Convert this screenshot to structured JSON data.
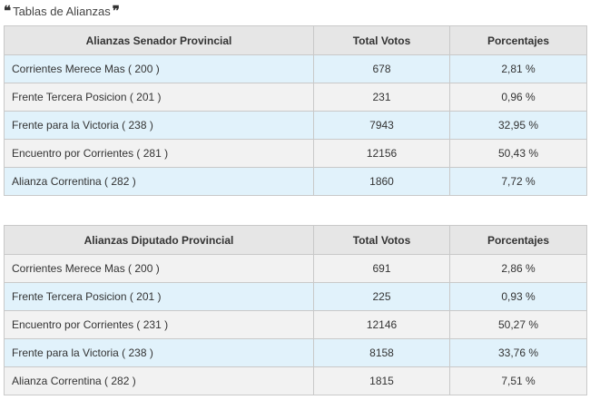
{
  "heading": {
    "open_quote": "❝",
    "title": "Tablas de Alianzas",
    "close_quote": "❞"
  },
  "senador": {
    "headers": [
      "Alianzas Senador Provincial",
      "Total Votos",
      "Porcentajes"
    ],
    "rows": [
      {
        "name": "Corrientes Merece Mas ( 200 )",
        "votes": "678",
        "pct": "2,81 %"
      },
      {
        "name": "Frente Tercera Posicion ( 201 )",
        "votes": "231",
        "pct": "0,96 %"
      },
      {
        "name": "Frente para la Victoria ( 238 )",
        "votes": "7943",
        "pct": "32,95 %"
      },
      {
        "name": "Encuentro por Corrientes ( 281 )",
        "votes": "12156",
        "pct": "50,43 %"
      },
      {
        "name": "Alianza Correntina ( 282 )",
        "votes": "1860",
        "pct": "7,72 %"
      }
    ]
  },
  "diputado": {
    "headers": [
      "Alianzas Diputado Provincial",
      "Total Votos",
      "Porcentajes"
    ],
    "rows": [
      {
        "name": "Corrientes Merece Mas ( 200 )",
        "votes": "691",
        "pct": "2,86 %"
      },
      {
        "name": "Frente Tercera Posicion ( 201 )",
        "votes": "225",
        "pct": "0,93 %"
      },
      {
        "name": "Encuentro por Corrientes ( 231 )",
        "votes": "12146",
        "pct": "50,27 %"
      },
      {
        "name": "Frente para la Victoria ( 238 )",
        "votes": "8158",
        "pct": "33,76 %"
      },
      {
        "name": "Alianza Correntina ( 282 )",
        "votes": "1815",
        "pct": "7,51 %"
      }
    ]
  },
  "colors": {
    "row_blue": "#e1f2fb",
    "row_grey": "#f2f2f2",
    "header_bg": "#e6e6e6",
    "border": "#c9c9c9"
  }
}
